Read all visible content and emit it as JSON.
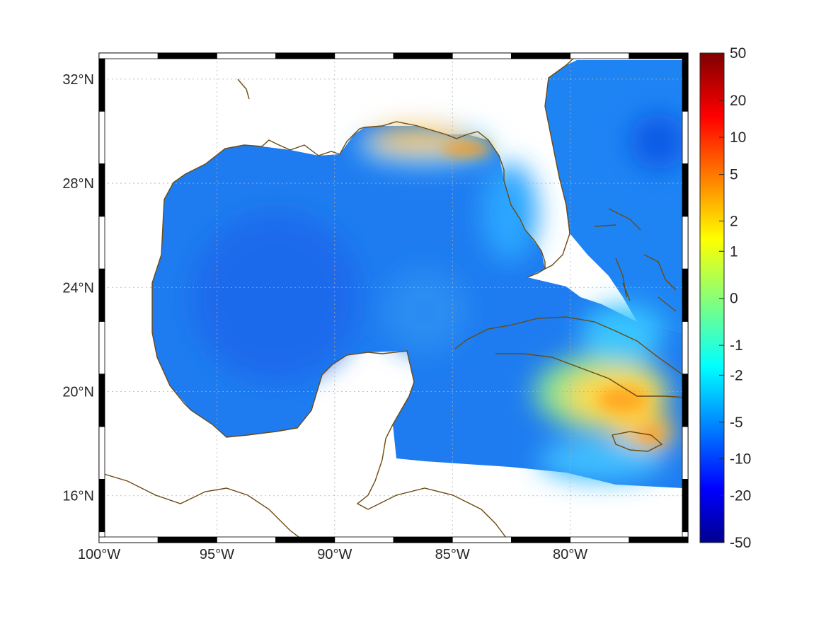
{
  "map": {
    "projection": "equirectangular",
    "extent": {
      "lon": [
        -100,
        -75
      ],
      "lat": [
        14.2,
        33
      ]
    },
    "lon_ticks": [
      {
        "value": -100,
        "label": "100°W"
      },
      {
        "value": -95,
        "label": "95°W"
      },
      {
        "value": -90,
        "label": "90°W"
      },
      {
        "value": -85,
        "label": "85°W"
      },
      {
        "value": -80,
        "label": "80°W"
      }
    ],
    "lat_ticks": [
      {
        "value": 32,
        "label": "32°N"
      },
      {
        "value": 28,
        "label": "28°N"
      },
      {
        "value": 24,
        "label": "24°N"
      },
      {
        "value": 20,
        "label": "20°N"
      },
      {
        "value": 16,
        "label": "16°N"
      }
    ],
    "grid": true,
    "frame_style": "alternating black-white border",
    "coastline_color": "#6b4a12",
    "land_color": "#ffffff",
    "field_description_colors": {
      "ocean_background": "#1e78f0",
      "hotspot_colors": [
        "#ffa500",
        "#ffe000",
        "#00c8ff"
      ]
    }
  },
  "colorbar": {
    "colormap": "jet",
    "labels": [
      "50",
      "20",
      "10",
      "5",
      "2",
      "1",
      "0",
      "-1",
      "-2",
      "-5",
      "-10",
      "-20",
      "-50"
    ],
    "label_positions_fraction": [
      0.0,
      0.097,
      0.172,
      0.248,
      0.343,
      0.405,
      0.501,
      0.597,
      0.658,
      0.754,
      0.829,
      0.904,
      1.0
    ]
  }
}
